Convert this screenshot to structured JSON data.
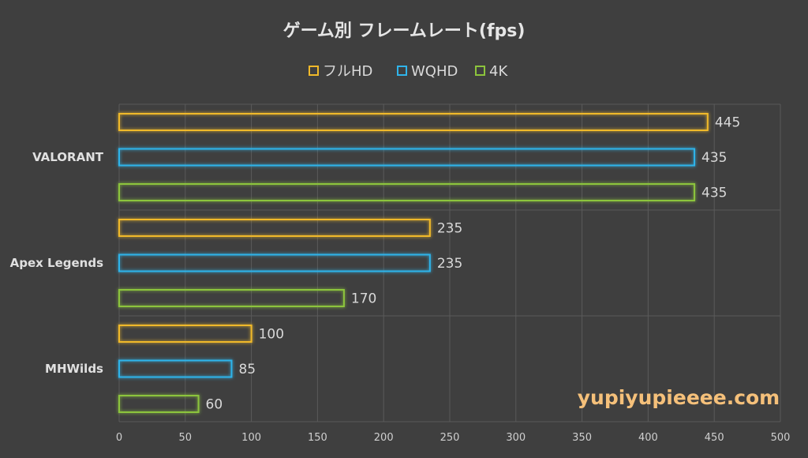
{
  "chart_data": {
    "type": "bar",
    "orientation": "horizontal",
    "title": "ゲーム別 フレームレート(fps)",
    "categories": [
      "VALORANT",
      "Apex Legends",
      "MHWilds"
    ],
    "series": [
      {
        "name": "フルHD",
        "values": [
          445,
          235,
          100
        ],
        "color": "#f0b92a"
      },
      {
        "name": "WQHD",
        "values": [
          435,
          235,
          85
        ],
        "color": "#2fb4ea"
      },
      {
        "name": "4K",
        "values": [
          435,
          170,
          60
        ],
        "color": "#8cc43c"
      }
    ],
    "xlim": [
      0,
      500
    ],
    "xticks": [
      0,
      50,
      100,
      150,
      200,
      250,
      300,
      350,
      400,
      450,
      500
    ],
    "grid": true,
    "legend_position": "top",
    "background": "#3f3f3f",
    "gridline_color": "#5a5a5a"
  },
  "watermark": "yupiyupieeee.com"
}
